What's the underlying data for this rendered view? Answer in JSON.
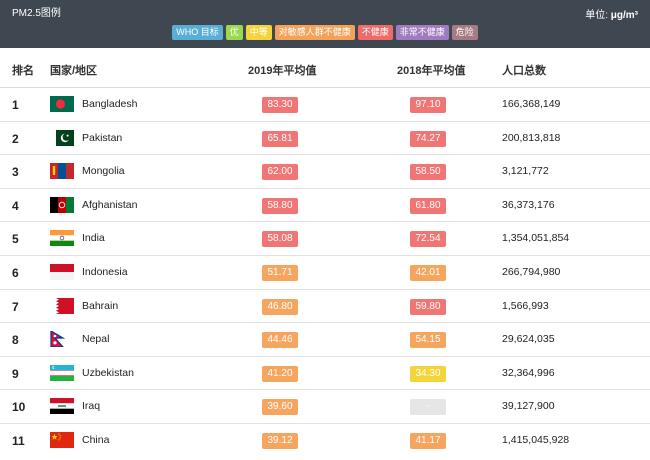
{
  "legend": {
    "title": "PM2.5图例",
    "unit_label": "单位:",
    "unit_value": "μg/m³",
    "chips": [
      {
        "label": "WHO 目标",
        "color": "#5aaed6"
      },
      {
        "label": "优",
        "color": "#9cd84e"
      },
      {
        "label": "中等",
        "color": "#f5d33a"
      },
      {
        "label": "对敏感人群不健康",
        "color": "#f4a25a"
      },
      {
        "label": "不健康",
        "color": "#f06a6a"
      },
      {
        "label": "非常不健康",
        "color": "#a07bbf"
      },
      {
        "label": "危险",
        "color": "#a67b84"
      }
    ]
  },
  "table": {
    "headers": {
      "rank": "排名",
      "country": "国家/地区",
      "y2019": "2019年平均值",
      "y2018": "2018年平均值",
      "population": "人口总数"
    },
    "rows": [
      {
        "rank": "1",
        "flag": "bangladesh-flag",
        "country": "Bangladesh",
        "y2019": "83.30",
        "c2019": "#f07575",
        "y2018": "97.10",
        "c2018": "#f07575",
        "population": "166,368,149"
      },
      {
        "rank": "2",
        "flag": "pakistan-flag",
        "country": "Pakistan",
        "y2019": "65.81",
        "c2019": "#f07575",
        "y2018": "74.27",
        "c2018": "#f07575",
        "population": "200,813,818"
      },
      {
        "rank": "3",
        "flag": "mongolia-flag",
        "country": "Mongolia",
        "y2019": "62.00",
        "c2019": "#f07575",
        "y2018": "58.50",
        "c2018": "#f07575",
        "population": "3,121,772"
      },
      {
        "rank": "4",
        "flag": "afghanistan-flag",
        "country": "Afghanistan",
        "y2019": "58.80",
        "c2019": "#f07575",
        "y2018": "61.80",
        "c2018": "#f07575",
        "population": "36,373,176"
      },
      {
        "rank": "5",
        "flag": "india-flag",
        "country": "India",
        "y2019": "58.08",
        "c2019": "#f07575",
        "y2018": "72.54",
        "c2018": "#f07575",
        "population": "1,354,051,854"
      },
      {
        "rank": "6",
        "flag": "indonesia-flag",
        "country": "Indonesia",
        "y2019": "51.71",
        "c2019": "#f6a55f",
        "y2018": "42.01",
        "c2018": "#f6a55f",
        "population": "266,794,980"
      },
      {
        "rank": "7",
        "flag": "bahrain-flag",
        "country": "Bahrain",
        "y2019": "46.80",
        "c2019": "#f6a55f",
        "y2018": "59.80",
        "c2018": "#f07575",
        "population": "1,566,993"
      },
      {
        "rank": "8",
        "flag": "nepal-flag",
        "country": "Nepal",
        "y2019": "44.46",
        "c2019": "#f6a55f",
        "y2018": "54.15",
        "c2018": "#f6a55f",
        "population": "29,624,035"
      },
      {
        "rank": "9",
        "flag": "uzbekistan-flag",
        "country": "Uzbekistan",
        "y2019": "41.20",
        "c2019": "#f6a55f",
        "y2018": "34.30",
        "c2018": "#f5d33a",
        "population": "32,364,996"
      },
      {
        "rank": "10",
        "flag": "iraq-flag",
        "country": "Iraq",
        "y2019": "39.60",
        "c2019": "#f6a55f",
        "y2018": "-",
        "c2018": "#e6e6e6",
        "population": "39,127,900"
      },
      {
        "rank": "11",
        "flag": "china-flag",
        "country": "China",
        "y2019": "39.12",
        "c2019": "#f6a55f",
        "y2018": "41.17",
        "c2018": "#f6a55f",
        "population": "1,415,045,928"
      }
    ]
  }
}
